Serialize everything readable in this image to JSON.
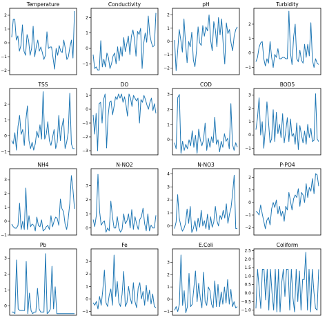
{
  "chart_data": [
    {
      "type": "line",
      "title": "Temperature",
      "yticks": [
        -2,
        -1,
        0,
        1,
        2
      ],
      "ylim": [
        -2.3,
        2.5
      ],
      "y": [
        0.4,
        1.7,
        1.7,
        0.2,
        0.5,
        -0.6,
        -0.2,
        1.3,
        -0.6,
        -0.9,
        0.6,
        0.2,
        -0.9,
        -0.4,
        1.2,
        -1.0,
        -0.3,
        0.2,
        -0.6,
        -0.3,
        -0.7,
        -1.2,
        -0.9,
        0.8,
        -0.4,
        -0.3,
        -0.3,
        -1.1,
        -1.9,
        -0.4,
        -0.9,
        -0.2,
        -0.6,
        -0.7,
        0.2,
        -0.4,
        -1.2,
        -1.0,
        -0.3,
        0.2,
        -1.1,
        2.3
      ]
    },
    {
      "type": "line",
      "title": "Conductivity",
      "yticks": [
        -1,
        0,
        1,
        2
      ],
      "ylim": [
        -1.7,
        2.6
      ],
      "y": [
        -0.4,
        -1.3,
        -1.2,
        -1.4,
        -1.4,
        0.5,
        -1.2,
        -0.7,
        -1.2,
        -0.3,
        -0.6,
        -1.3,
        -1.0,
        -0.5,
        -0.3,
        -1.0,
        0.1,
        -0.8,
        0.1,
        -0.5,
        0.7,
        -0.2,
        0.3,
        0.8,
        -0.4,
        0.8,
        1.2,
        0.6,
        -0.5,
        1.1,
        0.9,
        1.3,
        -1.3,
        0.3,
        1.0,
        0.4,
        2.1,
        0.9,
        0.4,
        0.1,
        0.2,
        2.3
      ]
    },
    {
      "type": "line",
      "title": "pH",
      "yticks": [
        -2,
        -1,
        0,
        1,
        2
      ],
      "ylim": [
        -2.5,
        2.5
      ],
      "y": [
        0.1,
        -2.2,
        -0.7,
        0.9,
        0.1,
        -0.8,
        1.7,
        -0.1,
        -1.6,
        0.0,
        -0.4,
        0.7,
        -1.4,
        -1.9,
        -0.7,
        1.1,
        -0.1,
        -0.3,
        1.2,
        0.4,
        1.1,
        0.8,
        2.0,
        0.1,
        -0.7,
        1.5,
        0.9,
        -0.4,
        1.8,
        0.5,
        1.7,
        -0.2,
        -1.7,
        1.4,
        0.6,
        0.9,
        -0.1,
        -0.7,
        0.4,
        0.9,
        1.1
      ]
    },
    {
      "type": "line",
      "title": "Turbidity",
      "yticks": [
        -1,
        0,
        1,
        2
      ],
      "ylim": [
        -1.5,
        3.1
      ],
      "y": [
        -0.6,
        -0.3,
        0.4,
        0.7,
        0.8,
        -0.4,
        -0.9,
        -0.4,
        -0.7,
        0.8,
        -0.3,
        -1.0,
        -0.1,
        -0.3,
        0.3,
        -0.4,
        -0.4,
        -0.3,
        -0.3,
        -0.4,
        -0.4,
        2.9,
        0.0,
        -0.8,
        1.1,
        2.0,
        -0.4,
        -0.6,
        0.2,
        -0.5,
        -0.7,
        0.6,
        -0.3,
        0.6,
        -0.2,
        2.1,
        -0.5,
        -1.0,
        -0.4,
        -0.7,
        -0.8
      ]
    },
    {
      "type": "line",
      "title": "TSS",
      "yticks": [
        -1,
        0,
        1,
        2
      ],
      "ylim": [
        -1.2,
        3.0
      ],
      "y": [
        -0.3,
        -0.5,
        0.2,
        -0.9,
        0.6,
        1.3,
        0.1,
        0.4,
        -0.6,
        1.0,
        1.9,
        -0.3,
        -0.8,
        -0.4,
        -0.9,
        -0.5,
        0.3,
        -0.1,
        0.7,
        -0.2,
        2.8,
        -0.2,
        0.1,
        0.9,
        -0.3,
        -0.6,
        -0.1,
        0.4,
        -0.8,
        -0.4,
        1.3,
        -0.3,
        0.6,
        1.1,
        -0.8,
        -0.4,
        0.2,
        2.7,
        -0.5,
        -0.8,
        -0.8
      ]
    },
    {
      "type": "line",
      "title": "DO",
      "yticks": [
        -3,
        -2,
        -1,
        0,
        1
      ],
      "ylim": [
        -3.3,
        1.5
      ],
      "y": [
        -0.4,
        -1.8,
        -0.3,
        -3.0,
        0.4,
        0.5,
        -1.0,
        0.7,
        1.1,
        -2.8,
        -0.5,
        0.5,
        0.6,
        -0.4,
        0.2,
        0.9,
        0.7,
        1.1,
        0.8,
        1.1,
        0.5,
        0.9,
        0.3,
        -0.5,
        1.1,
        0.8,
        0.2,
        1.0,
        0.8,
        0.6,
        0.8,
        -1.0,
        0.7,
        0.5,
        1.0,
        0.7,
        0.3,
        0.0,
        0.5,
        0.8,
        -0.1,
        0.4,
        -0.3
      ]
    },
    {
      "type": "line",
      "title": "COD",
      "yticks": [
        0,
        1,
        2,
        3
      ],
      "ylim": [
        -1.0,
        3.4
      ],
      "y": [
        -0.2,
        -0.6,
        2.8,
        3.0,
        -0.9,
        -0.1,
        -0.7,
        -0.3,
        -0.6,
        0.0,
        -0.4,
        0.6,
        -0.5,
        0.3,
        -0.9,
        0.7,
        0.0,
        -0.4,
        0.0,
        1.1,
        -0.7,
        0.1,
        -0.5,
        0.2,
        -0.2,
        1.5,
        -0.3,
        0.0,
        -0.8,
        -0.1,
        -0.5,
        0.4,
        -0.1,
        0.1,
        -0.6,
        2.4,
        -0.3,
        -0.7,
        -0.2,
        -0.5
      ]
    },
    {
      "type": "line",
      "title": "BOD5",
      "yticks": [
        -1,
        0,
        1,
        2,
        3
      ],
      "ylim": [
        -1.5,
        3.5
      ],
      "y": [
        0.4,
        1.3,
        2.8,
        0.0,
        1.0,
        -1.0,
        0.5,
        2.5,
        1.0,
        -0.6,
        -0.3,
        1.9,
        -0.5,
        1.7,
        0.1,
        0.8,
        -0.2,
        1.6,
        -0.6,
        0.3,
        1.3,
        -0.5,
        1.2,
        -0.1,
        0.1,
        -0.7,
        0.9,
        -1.1,
        0.7,
        0.0,
        -0.6,
        0.3,
        -0.7,
        0.8,
        -0.2,
        0.5,
        -0.5,
        -0.4,
        3.1,
        -0.3,
        -0.5
      ]
    },
    {
      "type": "line",
      "title": "NH4",
      "yticks": [
        -1,
        0,
        1,
        2,
        3
      ],
      "ylim": [
        -1.0,
        3.8
      ],
      "y": [
        -0.2,
        -0.4,
        -0.5,
        -0.5,
        -0.3,
        1.3,
        -0.6,
        0.0,
        -0.6,
        2.4,
        -0.6,
        0.4,
        -0.4,
        -0.2,
        -0.3,
        -0.7,
        0.3,
        -0.3,
        -0.4,
        0.1,
        -0.7,
        -0.6,
        -0.4,
        -0.3,
        -0.6,
        0.4,
        -0.4,
        0.0,
        0.3,
        0.2,
        -0.3,
        1.6,
        0.9,
        0.7,
        -0.2,
        -0.6,
        0.2,
        1.3,
        3.3,
        2.3,
        0.9
      ]
    },
    {
      "type": "line",
      "title": "N-NO2",
      "yticks": [
        0,
        1,
        2,
        3
      ],
      "ylim": [
        -0.5,
        4.2
      ],
      "y": [
        0.6,
        0.1,
        0.9,
        3.8,
        1.2,
        0.2,
        0.4,
        0.5,
        -0.3,
        0.0,
        -0.2,
        1.9,
        0.8,
        0.0,
        0.0,
        0.8,
        0.0,
        -0.3,
        -0.1,
        1.0,
        0.3,
        0.5,
        1.0,
        0.0,
        1.3,
        -0.1,
        0.8,
        0.3,
        -0.1,
        0.6,
        0.8,
        1.4,
        0.3,
        -0.2,
        1.0,
        -0.2,
        0.2,
        0.0,
        0.0,
        0.9
      ]
    },
    {
      "type": "line",
      "title": "N-NO3",
      "yticks": [
        0,
        1,
        2,
        3,
        4
      ],
      "ylim": [
        -0.7,
        4.4
      ],
      "y": [
        -0.2,
        0.3,
        2.4,
        0.6,
        0.0,
        -0.4,
        -0.2,
        0.2,
        1.3,
        0.2,
        1.5,
        -0.5,
        -0.2,
        0.4,
        -0.4,
        0.6,
        -0.1,
        1.2,
        0.0,
        0.4,
        -0.2,
        0.9,
        -0.3,
        0.7,
        -0.1,
        0.3,
        1.5,
        0.4,
        0.0,
        0.8,
        0.5,
        1.2,
        0.6,
        1.7,
        0.2,
        0.9,
        1.4,
        2.5,
        3.9,
        -0.2,
        -0.2
      ]
    },
    {
      "type": "line",
      "title": "P-PO4",
      "yticks": [
        -2,
        -1,
        0,
        1,
        2
      ],
      "ylim": [
        -2.6,
        2.7
      ],
      "y": [
        -0.7,
        -0.8,
        -1.0,
        -0.2,
        -0.9,
        -1.5,
        -2.1,
        -1.4,
        -1.2,
        -1.8,
        -0.5,
        0.0,
        -0.4,
        0.2,
        -0.9,
        -0.3,
        -1.1,
        -0.7,
        -1.5,
        -0.3,
        -0.6,
        0.8,
        0.1,
        -0.6,
        0.3,
        0.6,
        0.4,
        1.1,
        -0.3,
        0.8,
        0.6,
        0.0,
        1.5,
        0.4,
        1.2,
        0.9,
        1.9,
        0.7,
        2.3,
        2.2,
        1.3
      ]
    },
    {
      "type": "line",
      "title": "Pb",
      "yticks": [
        0,
        1,
        2,
        3
      ],
      "ylim": [
        -0.6,
        3.6
      ],
      "y": [
        -0.4,
        -0.4,
        -0.5,
        2.9,
        -0.2,
        -0.3,
        -0.3,
        -0.3,
        -0.3,
        2.8,
        -0.5,
        0.8,
        -0.3,
        -0.5,
        -0.4,
        -0.4,
        1.1,
        -0.2,
        -0.4,
        -0.4,
        -0.4,
        3.3,
        -0.5,
        -0.4,
        -0.2,
        2.5,
        -0.2,
        1.2,
        -0.5,
        -0.5,
        -0.5,
        -0.5,
        -0.5,
        -0.5,
        -0.5,
        -0.5,
        -0.5,
        -0.5,
        -0.5,
        -0.5
      ]
    },
    {
      "type": "line",
      "title": "Fe",
      "yticks": [
        -1,
        0,
        1,
        2,
        3
      ],
      "ylim": [
        -1.3,
        4.0
      ],
      "y": [
        -0.3,
        -0.5,
        -0.2,
        -0.8,
        0.2,
        -0.5,
        0.7,
        2.3,
        -0.3,
        -0.6,
        0.3,
        0.8,
        -0.5,
        3.5,
        0.2,
        1.4,
        -0.3,
        -0.6,
        0.4,
        2.2,
        -0.6,
        -0.3,
        1.0,
        0.1,
        -0.4,
        1.3,
        -0.2,
        -0.7,
        0.9,
        1.3,
        0.0,
        0.6,
        -0.5,
        1.1,
        -0.2,
        0.7,
        -0.4,
        0.4,
        -0.6,
        -0.7
      ]
    },
    {
      "type": "line",
      "title": "E.Coli",
      "yticks": [
        -1,
        0,
        1,
        2,
        3
      ],
      "ylim": [
        -1.3,
        4.1
      ],
      "y": [
        -0.9,
        -0.6,
        -1.0,
        -0.4,
        3.6,
        -0.5,
        0.7,
        -1.1,
        -0.6,
        2.1,
        -0.6,
        -0.4,
        0.9,
        2.3,
        -0.2,
        1.3,
        0.1,
        -0.7,
        2.2,
        -0.2,
        -0.5,
        1.0,
        0.7,
        -0.4,
        -0.7,
        1.5,
        -0.6,
        1.2,
        -0.6,
        0.6,
        -0.4,
        1.0,
        -0.3,
        1.6,
        -0.4,
        0.8,
        -0.6,
        -0.2,
        -0.7,
        -0.6
      ]
    },
    {
      "type": "line",
      "title": "Coliform",
      "yticks": [
        -1.0,
        -0.5,
        0.0,
        0.5,
        1.0,
        1.5,
        2.0,
        2.5
      ],
      "yticklabels": [
        "−1.0",
        "−0.5",
        "0.0",
        "0.5",
        "1.0",
        "1.5",
        "2.0",
        "2.5"
      ],
      "ylim": [
        -1.3,
        2.6
      ],
      "y": [
        -0.9,
        1.4,
        0.3,
        -0.9,
        1.4,
        1.4,
        -0.4,
        1.4,
        -1.0,
        1.4,
        0.0,
        -1.0,
        1.4,
        -1.1,
        1.4,
        -1.1,
        0.6,
        1.4,
        -0.2,
        1.4,
        1.4,
        -1.0,
        1.4,
        -0.3,
        -1.1,
        1.4,
        -0.5,
        1.3,
        -1.0,
        0.8,
        0.8,
        2.4,
        -1.0,
        1.4,
        -1.1,
        1.4,
        0.1,
        -0.9,
        -1.0,
        1.4
      ]
    }
  ]
}
